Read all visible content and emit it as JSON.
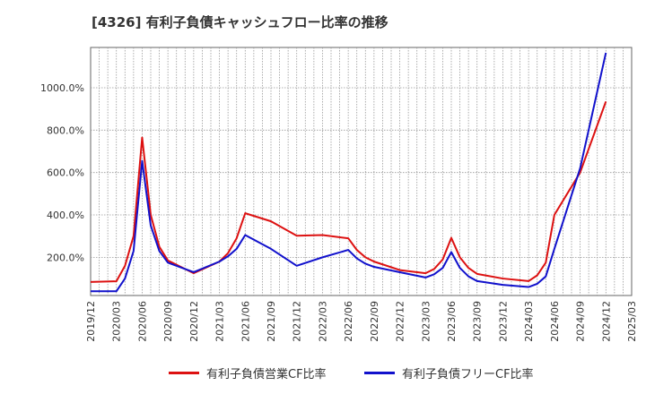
{
  "chart_data": {
    "type": "line",
    "title": "[4326]  有利子負債キャッシュフロー比率の推移",
    "xlabel": "",
    "ylabel": "",
    "x_tick_labels": [
      "2019/12",
      "2020/03",
      "2020/06",
      "2020/09",
      "2020/12",
      "2021/03",
      "2021/06",
      "2021/09",
      "2021/12",
      "2022/03",
      "2022/06",
      "2022/09",
      "2022/12",
      "2023/03",
      "2023/06",
      "2023/09",
      "2023/12",
      "2024/03",
      "2024/06",
      "2024/09",
      "2024/12",
      "2025/03"
    ],
    "y_tick_labels": [
      "200.0%",
      "400.0%",
      "600.0%",
      "800.0%",
      "1000.0%"
    ],
    "y_ticks": [
      200,
      400,
      600,
      800,
      1000
    ],
    "ylim": [
      20,
      1190
    ],
    "xlim": [
      "2019/12",
      "2025/03"
    ],
    "grid": true,
    "legend_position": "bottom",
    "series": [
      {
        "name": "有利子負債営業CF比率",
        "color": "#dd1111",
        "points": [
          [
            "2019/12",
            84
          ],
          [
            "2020/03",
            87
          ],
          [
            "2020/04",
            160
          ],
          [
            "2020/05",
            300
          ],
          [
            "2020/06",
            765
          ],
          [
            "2020/07",
            400
          ],
          [
            "2020/08",
            250
          ],
          [
            "2020/09",
            185
          ],
          [
            "2020/12",
            125
          ],
          [
            "2021/03",
            180
          ],
          [
            "2021/04",
            220
          ],
          [
            "2021/05",
            290
          ],
          [
            "2021/06",
            408
          ],
          [
            "2021/09",
            370
          ],
          [
            "2021/12",
            302
          ],
          [
            "2022/03",
            305
          ],
          [
            "2022/06",
            290
          ],
          [
            "2022/07",
            235
          ],
          [
            "2022/08",
            200
          ],
          [
            "2022/09",
            180
          ],
          [
            "2022/12",
            140
          ],
          [
            "2023/03",
            125
          ],
          [
            "2023/04",
            145
          ],
          [
            "2023/05",
            190
          ],
          [
            "2023/06",
            292
          ],
          [
            "2023/07",
            200
          ],
          [
            "2023/08",
            150
          ],
          [
            "2023/09",
            122
          ],
          [
            "2023/12",
            100
          ],
          [
            "2024/03",
            88
          ],
          [
            "2024/04",
            115
          ],
          [
            "2024/05",
            175
          ],
          [
            "2024/06",
            400
          ],
          [
            "2024/09",
            600
          ],
          [
            "2024/12",
            935
          ]
        ]
      },
      {
        "name": "有利子負債フリーCF比率",
        "color": "#1111cc",
        "points": [
          [
            "2019/12",
            40
          ],
          [
            "2020/03",
            40
          ],
          [
            "2020/04",
            100
          ],
          [
            "2020/05",
            230
          ],
          [
            "2020/06",
            655
          ],
          [
            "2020/07",
            350
          ],
          [
            "2020/08",
            230
          ],
          [
            "2020/09",
            175
          ],
          [
            "2020/12",
            130
          ],
          [
            "2021/03",
            180
          ],
          [
            "2021/04",
            205
          ],
          [
            "2021/05",
            240
          ],
          [
            "2021/06",
            305
          ],
          [
            "2021/09",
            240
          ],
          [
            "2021/12",
            160
          ],
          [
            "2022/03",
            200
          ],
          [
            "2022/06",
            235
          ],
          [
            "2022/07",
            195
          ],
          [
            "2022/08",
            170
          ],
          [
            "2022/09",
            155
          ],
          [
            "2022/12",
            130
          ],
          [
            "2023/03",
            105
          ],
          [
            "2023/04",
            120
          ],
          [
            "2023/05",
            150
          ],
          [
            "2023/06",
            225
          ],
          [
            "2023/07",
            150
          ],
          [
            "2023/08",
            110
          ],
          [
            "2023/09",
            88
          ],
          [
            "2023/12",
            70
          ],
          [
            "2024/03",
            60
          ],
          [
            "2024/04",
            75
          ],
          [
            "2024/05",
            110
          ],
          [
            "2024/06",
            240
          ],
          [
            "2024/09",
            620
          ],
          [
            "2024/12",
            1165
          ]
        ]
      }
    ]
  }
}
